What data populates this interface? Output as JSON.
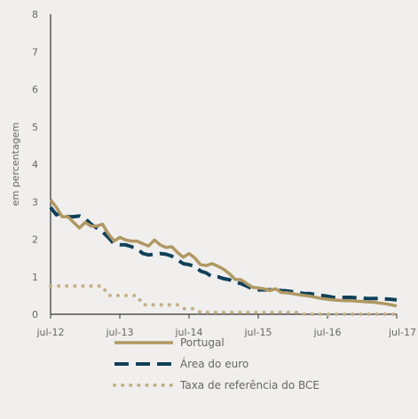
{
  "chart_data": {
    "type": "line",
    "title": "",
    "xlabel": "",
    "ylabel": "em percentagem",
    "ylim": [
      0,
      8
    ],
    "yticks": [
      0,
      1,
      2,
      3,
      4,
      5,
      6,
      7,
      8
    ],
    "xlim": [
      "2012-07",
      "2017-07"
    ],
    "xticks": [
      "2012-07",
      "2013-07",
      "2014-07",
      "2015-07",
      "2016-07",
      "2017-07"
    ],
    "xtick_labels": [
      "jul-12",
      "jul-13",
      "jul-14",
      "jul-15",
      "jul-16",
      "jul-17"
    ],
    "grid": false,
    "legend_position": "bottom",
    "series": [
      {
        "name": "Portugal",
        "color": "#b09863",
        "style": "solid",
        "points": [
          [
            "2012-07",
            3.05
          ],
          [
            "2012-08",
            2.85
          ],
          [
            "2012-09",
            2.6
          ],
          [
            "2012-10",
            2.6
          ],
          [
            "2012-11",
            2.45
          ],
          [
            "2012-12",
            2.3
          ],
          [
            "2013-01",
            2.45
          ],
          [
            "2013-02",
            2.35
          ],
          [
            "2013-03",
            2.35
          ],
          [
            "2013-04",
            2.4
          ],
          [
            "2013-05",
            2.15
          ],
          [
            "2013-06",
            1.95
          ],
          [
            "2013-07",
            2.05
          ],
          [
            "2013-08",
            1.98
          ],
          [
            "2013-09",
            1.95
          ],
          [
            "2013-10",
            1.95
          ],
          [
            "2013-11",
            1.88
          ],
          [
            "2013-12",
            1.82
          ],
          [
            "2014-01",
            1.98
          ],
          [
            "2014-02",
            1.85
          ],
          [
            "2014-03",
            1.78
          ],
          [
            "2014-04",
            1.8
          ],
          [
            "2014-05",
            1.65
          ],
          [
            "2014-06",
            1.52
          ],
          [
            "2014-07",
            1.62
          ],
          [
            "2014-08",
            1.5
          ],
          [
            "2014-09",
            1.32
          ],
          [
            "2014-10",
            1.3
          ],
          [
            "2014-11",
            1.35
          ],
          [
            "2014-12",
            1.28
          ],
          [
            "2015-01",
            1.2
          ],
          [
            "2015-02",
            1.08
          ],
          [
            "2015-03",
            0.93
          ],
          [
            "2015-04",
            0.92
          ],
          [
            "2015-05",
            0.82
          ],
          [
            "2015-06",
            0.72
          ],
          [
            "2015-07",
            0.7
          ],
          [
            "2015-08",
            0.68
          ],
          [
            "2015-09",
            0.63
          ],
          [
            "2015-10",
            0.68
          ],
          [
            "2015-11",
            0.58
          ],
          [
            "2015-12",
            0.57
          ],
          [
            "2016-01",
            0.55
          ],
          [
            "2016-02",
            0.52
          ],
          [
            "2016-03",
            0.5
          ],
          [
            "2016-04",
            0.48
          ],
          [
            "2016-05",
            0.45
          ],
          [
            "2016-06",
            0.42
          ],
          [
            "2016-07",
            0.4
          ],
          [
            "2016-08",
            0.38
          ],
          [
            "2016-09",
            0.37
          ],
          [
            "2016-10",
            0.36
          ],
          [
            "2016-11",
            0.36
          ],
          [
            "2016-12",
            0.35
          ],
          [
            "2017-01",
            0.34
          ],
          [
            "2017-02",
            0.33
          ],
          [
            "2017-03",
            0.32
          ],
          [
            "2017-04",
            0.3
          ],
          [
            "2017-05",
            0.28
          ],
          [
            "2017-06",
            0.25
          ],
          [
            "2017-07",
            0.22
          ]
        ]
      },
      {
        "name": "Área do euro",
        "color": "#0f4059",
        "style": "dashed",
        "points": [
          [
            "2012-07",
            2.85
          ],
          [
            "2012-08",
            2.65
          ],
          [
            "2012-09",
            2.72
          ],
          [
            "2012-10",
            2.6
          ],
          [
            "2012-11",
            2.6
          ],
          [
            "2012-12",
            2.62
          ],
          [
            "2013-01",
            2.55
          ],
          [
            "2013-02",
            2.4
          ],
          [
            "2013-03",
            2.3
          ],
          [
            "2013-04",
            2.2
          ],
          [
            "2013-05",
            2.05
          ],
          [
            "2013-06",
            1.88
          ],
          [
            "2013-07",
            1.85
          ],
          [
            "2013-08",
            1.85
          ],
          [
            "2013-09",
            1.8
          ],
          [
            "2013-10",
            1.75
          ],
          [
            "2013-11",
            1.62
          ],
          [
            "2013-12",
            1.58
          ],
          [
            "2014-01",
            1.6
          ],
          [
            "2014-02",
            1.62
          ],
          [
            "2014-03",
            1.6
          ],
          [
            "2014-04",
            1.55
          ],
          [
            "2014-05",
            1.45
          ],
          [
            "2014-06",
            1.35
          ],
          [
            "2014-07",
            1.32
          ],
          [
            "2014-08",
            1.28
          ],
          [
            "2014-09",
            1.15
          ],
          [
            "2014-10",
            1.1
          ],
          [
            "2014-11",
            1.0
          ],
          [
            "2014-12",
            1.0
          ],
          [
            "2015-01",
            0.95
          ],
          [
            "2015-02",
            0.92
          ],
          [
            "2015-03",
            0.85
          ],
          [
            "2015-04",
            0.82
          ],
          [
            "2015-05",
            0.75
          ],
          [
            "2015-06",
            0.68
          ],
          [
            "2015-07",
            0.65
          ],
          [
            "2015-08",
            0.65
          ],
          [
            "2015-09",
            0.65
          ],
          [
            "2015-10",
            0.65
          ],
          [
            "2015-11",
            0.63
          ],
          [
            "2015-12",
            0.62
          ],
          [
            "2016-01",
            0.6
          ],
          [
            "2016-02",
            0.58
          ],
          [
            "2016-03",
            0.55
          ],
          [
            "2016-04",
            0.55
          ],
          [
            "2016-05",
            0.52
          ],
          [
            "2016-06",
            0.5
          ],
          [
            "2016-07",
            0.48
          ],
          [
            "2016-08",
            0.45
          ],
          [
            "2016-09",
            0.45
          ],
          [
            "2016-10",
            0.45
          ],
          [
            "2016-11",
            0.45
          ],
          [
            "2016-12",
            0.44
          ],
          [
            "2017-01",
            0.43
          ],
          [
            "2017-02",
            0.42
          ],
          [
            "2017-03",
            0.42
          ],
          [
            "2017-04",
            0.42
          ],
          [
            "2017-05",
            0.41
          ],
          [
            "2017-06",
            0.4
          ],
          [
            "2017-07",
            0.38
          ]
        ]
      },
      {
        "name": "Taxa de referência do BCE",
        "color": "#c4b186",
        "style": "dotted",
        "points": [
          [
            "2012-07",
            0.75
          ],
          [
            "2012-08",
            0.75
          ],
          [
            "2012-09",
            0.75
          ],
          [
            "2012-10",
            0.75
          ],
          [
            "2012-11",
            0.75
          ],
          [
            "2012-12",
            0.75
          ],
          [
            "2013-01",
            0.75
          ],
          [
            "2013-02",
            0.75
          ],
          [
            "2013-03",
            0.75
          ],
          [
            "2013-04",
            0.75
          ],
          [
            "2013-05",
            0.5
          ],
          [
            "2013-06",
            0.5
          ],
          [
            "2013-07",
            0.5
          ],
          [
            "2013-08",
            0.5
          ],
          [
            "2013-09",
            0.5
          ],
          [
            "2013-10",
            0.5
          ],
          [
            "2013-11",
            0.25
          ],
          [
            "2013-12",
            0.25
          ],
          [
            "2014-01",
            0.25
          ],
          [
            "2014-02",
            0.25
          ],
          [
            "2014-03",
            0.25
          ],
          [
            "2014-04",
            0.25
          ],
          [
            "2014-05",
            0.25
          ],
          [
            "2014-06",
            0.15
          ],
          [
            "2014-07",
            0.15
          ],
          [
            "2014-08",
            0.15
          ],
          [
            "2014-09",
            0.05
          ],
          [
            "2014-10",
            0.05
          ],
          [
            "2014-11",
            0.05
          ],
          [
            "2014-12",
            0.05
          ],
          [
            "2015-01",
            0.05
          ],
          [
            "2015-02",
            0.05
          ],
          [
            "2015-03",
            0.05
          ],
          [
            "2015-04",
            0.05
          ],
          [
            "2015-05",
            0.05
          ],
          [
            "2015-06",
            0.05
          ],
          [
            "2015-07",
            0.05
          ],
          [
            "2015-08",
            0.05
          ],
          [
            "2015-09",
            0.05
          ],
          [
            "2015-10",
            0.05
          ],
          [
            "2015-11",
            0.05
          ],
          [
            "2015-12",
            0.05
          ],
          [
            "2016-01",
            0.05
          ],
          [
            "2016-02",
            0.05
          ],
          [
            "2016-03",
            0.0
          ],
          [
            "2016-04",
            0.0
          ],
          [
            "2016-05",
            0.0
          ],
          [
            "2016-06",
            0.0
          ],
          [
            "2016-07",
            0.0
          ],
          [
            "2016-08",
            0.0
          ],
          [
            "2016-09",
            0.0
          ],
          [
            "2016-10",
            0.0
          ],
          [
            "2016-11",
            0.0
          ],
          [
            "2016-12",
            0.0
          ],
          [
            "2017-01",
            0.0
          ],
          [
            "2017-02",
            0.0
          ],
          [
            "2017-03",
            0.0
          ],
          [
            "2017-04",
            0.0
          ],
          [
            "2017-05",
            0.0
          ],
          [
            "2017-06",
            0.0
          ],
          [
            "2017-07",
            0.0
          ]
        ]
      }
    ]
  }
}
